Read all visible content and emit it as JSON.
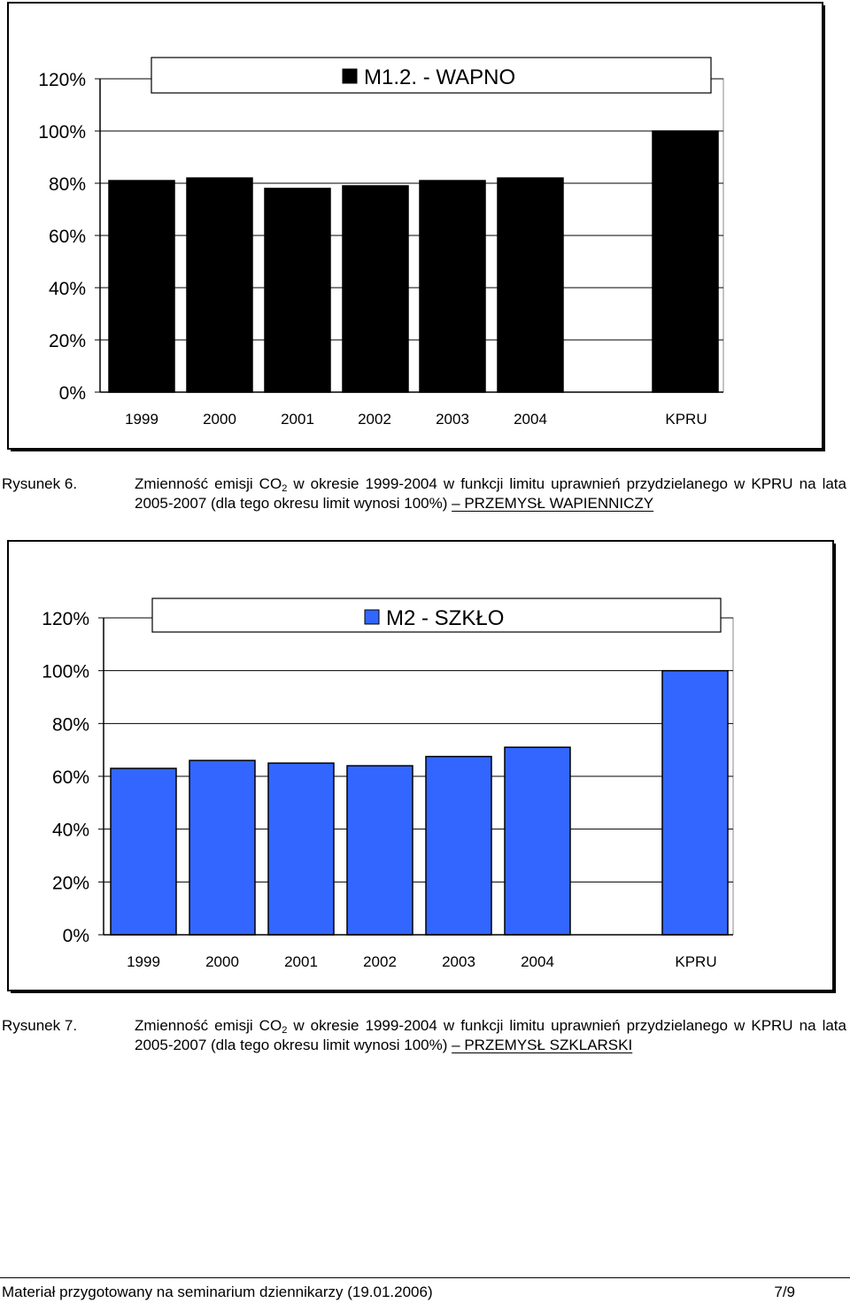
{
  "chart_data": [
    {
      "type": "bar",
      "legend": "M1.2. - WAPNO",
      "legend_placement": "top",
      "categories": [
        "1999",
        "2000",
        "2001",
        "2002",
        "2003",
        "2004",
        "KPRU"
      ],
      "values": [
        81,
        82,
        78,
        79,
        81,
        82,
        100
      ],
      "yticks": [
        "0%",
        "20%",
        "40%",
        "60%",
        "80%",
        "100%",
        "120%"
      ],
      "ylim": [
        0,
        120
      ],
      "grid": true,
      "bar_color": "#000000"
    },
    {
      "type": "bar",
      "legend": "M2 - SZKŁO",
      "legend_placement": "top",
      "categories": [
        "1999",
        "2000",
        "2001",
        "2002",
        "2003",
        "2004",
        "KPRU"
      ],
      "values": [
        63,
        66,
        65,
        64,
        67.5,
        71,
        100
      ],
      "yticks": [
        "0%",
        "20%",
        "40%",
        "60%",
        "80%",
        "100%",
        "120%"
      ],
      "ylim": [
        0,
        120
      ],
      "grid": true,
      "bar_color": "#3366ff"
    }
  ],
  "captions": [
    {
      "number": "Rysunek 6.",
      "text_pre": "Zmienność emisji CO",
      "sub": "2",
      "text_post": " w okresie 1999-2004 w funkcji limitu uprawnień przydzielanego w KPRU na lata 2005-2007 (dla tego okresu limit wynosi 100%) ",
      "industry": "– PRZEMYSŁ WAPIENNICZY"
    },
    {
      "number": "Rysunek 7.",
      "text_pre": "Zmienność emisji CO",
      "sub": "2",
      "text_post": " w okresie 1999-2004 w funkcji limitu uprawnień przydzielanego w KPRU na lata 2005-2007 (dla tego okresu limit wynosi 100%) ",
      "industry": "– PRZEMYSŁ SZKLARSKI"
    }
  ],
  "footer": {
    "left": "Materiał przygotowany na seminarium dziennikarzy (19.01.2006)",
    "right": "7/9"
  }
}
